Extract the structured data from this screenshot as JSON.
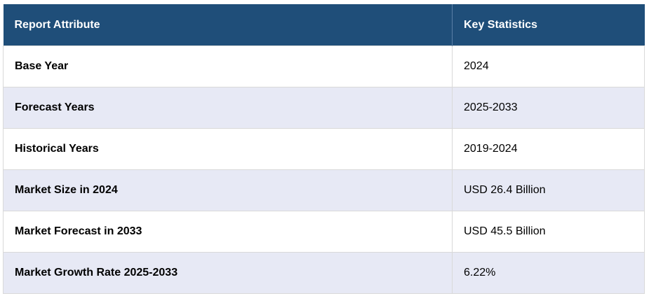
{
  "table": {
    "headers": [
      "Report Attribute",
      "Key Statistics"
    ],
    "rows": [
      {
        "attribute": "Base Year",
        "value": "2024"
      },
      {
        "attribute": "Forecast Years",
        "value": "2025-2033"
      },
      {
        "attribute": "Historical Years",
        "value": "2019-2024"
      },
      {
        "attribute": "Market Size in 2024",
        "value": "USD 26.4 Billion"
      },
      {
        "attribute": "Market Forecast in 2033",
        "value": "USD 45.5 Billion"
      },
      {
        "attribute": "Market Growth Rate 2025-2033",
        "value": "6.22%"
      }
    ]
  },
  "colors": {
    "header_bg": "#1f4e79",
    "header_text": "#ffffff",
    "row_alt_bg": "#e7e9f5",
    "row_bg": "#ffffff",
    "border": "#d9d9d9"
  }
}
